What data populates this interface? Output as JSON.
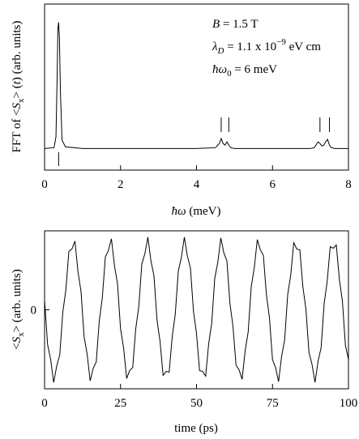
{
  "chart_data": [
    {
      "type": "line",
      "ylabel": [
        "FFT of <",
        "S",
        "x",
        "> (",
        "t",
        ")  (arb. units)"
      ],
      "xlabel": [
        "ħω",
        " (meV)"
      ],
      "annotations": [
        [
          "B",
          " = 1.5 T"
        ],
        [
          "λ",
          "D",
          " = 1.1 x 10",
          "−9",
          " eV cm"
        ],
        [
          "ħω",
          "0",
          " = 6 meV"
        ]
      ],
      "color": "#000000",
      "xlim": [
        0,
        8
      ],
      "xticks": [
        0,
        2,
        4,
        6,
        8
      ],
      "ylim": [
        0,
        1
      ],
      "yticks": [],
      "upper_markers": [
        4.65,
        4.85,
        7.25,
        7.5
      ],
      "lower_markers": [
        0.37
      ],
      "x": [
        0,
        0.25,
        0.3,
        0.33,
        0.35,
        0.37,
        0.39,
        0.42,
        0.46,
        0.55,
        1,
        2,
        3,
        4,
        4.5,
        4.6,
        4.65,
        4.7,
        4.75,
        4.8,
        4.85,
        4.9,
        5,
        6,
        7,
        7.1,
        7.2,
        7.25,
        7.3,
        7.35,
        7.4,
        7.45,
        7.5,
        7.55,
        7.65,
        8
      ],
      "values": [
        0.13,
        0.135,
        0.2,
        0.55,
        0.85,
        0.89,
        0.8,
        0.45,
        0.18,
        0.14,
        0.13,
        0.13,
        0.13,
        0.13,
        0.135,
        0.16,
        0.19,
        0.16,
        0.15,
        0.17,
        0.15,
        0.135,
        0.13,
        0.13,
        0.13,
        0.135,
        0.17,
        0.16,
        0.145,
        0.15,
        0.17,
        0.185,
        0.15,
        0.135,
        0.13,
        0.13
      ]
    },
    {
      "type": "line",
      "ylabel": [
        "<",
        "S",
        "x",
        ">  (arb. units)"
      ],
      "xlabel": [
        "time (ps)"
      ],
      "color": "#000000",
      "xlim": [
        0,
        100
      ],
      "xticks": [
        0,
        25,
        50,
        75,
        100
      ],
      "ylim": [
        -1,
        1
      ],
      "yticks": [
        0
      ],
      "x": [
        0,
        1,
        2,
        3,
        4,
        5,
        6,
        7,
        8,
        9,
        10,
        11,
        12,
        13,
        14,
        15,
        16,
        17,
        18,
        19,
        20,
        21,
        22,
        23,
        24,
        25,
        26,
        27,
        28,
        29,
        30,
        31,
        32,
        33,
        34,
        35,
        36,
        37,
        38,
        39,
        40,
        41,
        42,
        43,
        44,
        45,
        46,
        47,
        48,
        49,
        50,
        51,
        52,
        53,
        54,
        55,
        56,
        57,
        58,
        59,
        60,
        61,
        62,
        63,
        64,
        65,
        66,
        67,
        68,
        69,
        70,
        71,
        72,
        73,
        74,
        75,
        76,
        77,
        78,
        79,
        80,
        81,
        82,
        83,
        84,
        85,
        86,
        87,
        88,
        89,
        90,
        91,
        92,
        93,
        94,
        95,
        96,
        97,
        98,
        99,
        100
      ],
      "values": [
        0.12,
        -0.44,
        -0.63,
        -0.92,
        -0.71,
        -0.57,
        -0.03,
        0.25,
        0.74,
        0.77,
        0.87,
        0.48,
        0.23,
        -0.34,
        -0.56,
        -0.9,
        -0.74,
        -0.66,
        -0.14,
        0.15,
        0.67,
        0.75,
        0.9,
        0.56,
        0.33,
        -0.24,
        -0.48,
        -0.87,
        -0.77,
        -0.73,
        -0.24,
        0.04,
        0.58,
        0.71,
        0.92,
        0.62,
        0.43,
        -0.13,
        -0.4,
        -0.83,
        -0.78,
        -0.79,
        -0.34,
        -0.06,
        0.49,
        0.66,
        0.92,
        0.68,
        0.53,
        -0.02,
        -0.3,
        -0.77,
        -0.78,
        -0.84,
        -0.43,
        -0.17,
        0.4,
        0.6,
        0.91,
        0.72,
        0.62,
        0.08,
        -0.21,
        -0.7,
        -0.76,
        -0.88,
        -0.52,
        -0.28,
        0.29,
        0.53,
        0.89,
        0.76,
        0.69,
        0.19,
        -0.1,
        -0.63,
        -0.73,
        -0.91,
        -0.59,
        -0.38,
        0.19,
        0.44,
        0.85,
        0.77,
        0.76,
        0.29,
        0.01,
        -0.54,
        -0.69,
        -0.92,
        -0.65,
        -0.48,
        0.08,
        0.36,
        0.8,
        0.78,
        0.82,
        0.39,
        0.11,
        -0.45,
        -0.63
      ]
    }
  ]
}
